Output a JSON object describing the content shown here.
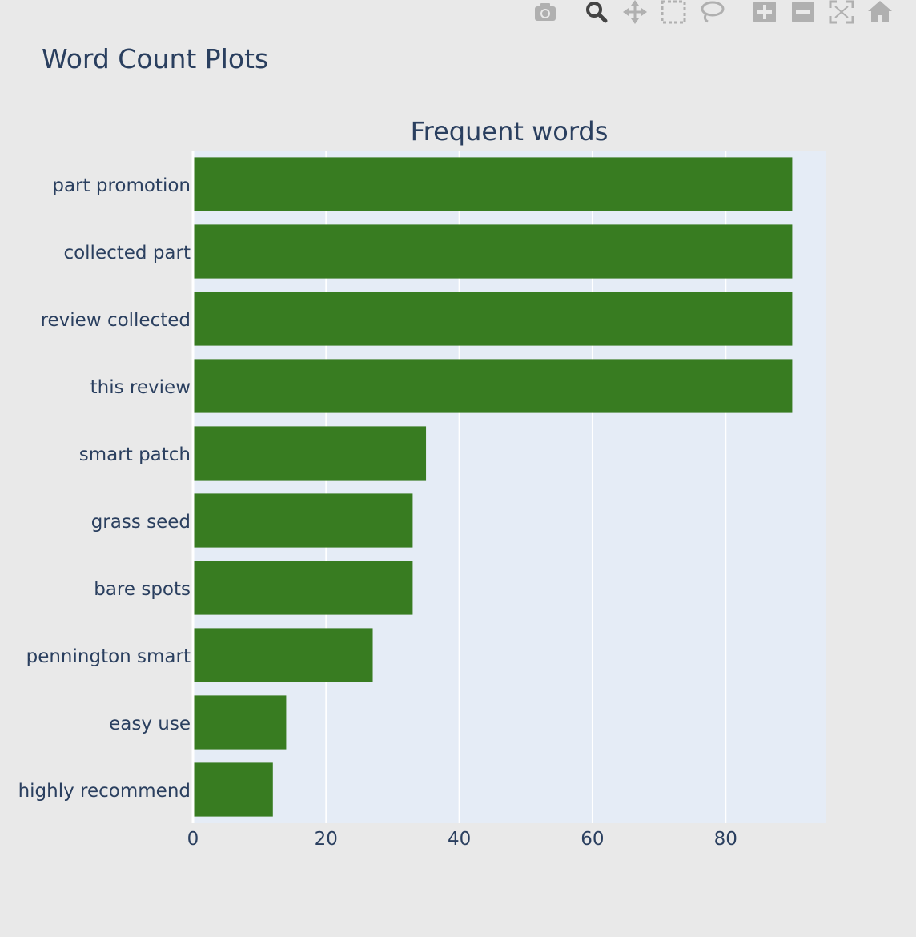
{
  "page": {
    "title": "Word Count Plots"
  },
  "modebar": {
    "buttons": [
      {
        "name": "camera-icon",
        "label": "Download plot as a png"
      },
      {
        "name": "zoom-icon",
        "label": "Zoom",
        "active": true
      },
      {
        "name": "pan-icon",
        "label": "Pan"
      },
      {
        "name": "box-select-icon",
        "label": "Box Select"
      },
      {
        "name": "lasso-select-icon",
        "label": "Lasso Select"
      },
      {
        "name": "zoom-in-icon",
        "label": "Zoom in"
      },
      {
        "name": "zoom-out-icon",
        "label": "Zoom out"
      },
      {
        "name": "autoscale-icon",
        "label": "Autoscale"
      },
      {
        "name": "reset-axes-icon",
        "label": "Reset axes"
      }
    ],
    "icon_color": "#b0b0b0",
    "active_color": "#444444"
  },
  "chart_data": {
    "type": "bar",
    "orientation": "horizontal",
    "title": "Frequent words",
    "categories": [
      "part promotion",
      "collected part",
      "review collected",
      "this review",
      "smart patch",
      "grass seed",
      "bare spots",
      "pennington smart",
      "easy use",
      "highly recommend"
    ],
    "values": [
      90,
      90,
      90,
      90,
      35,
      33,
      33,
      27,
      14,
      12
    ],
    "xlim": [
      0,
      95
    ],
    "xticks": [
      0,
      20,
      40,
      60,
      80
    ],
    "xlabel": "",
    "ylabel": "",
    "grid": true,
    "bar_color": "#387c21",
    "plot_bg": "#e5ecf6",
    "text_color": "#2a3f5f"
  }
}
